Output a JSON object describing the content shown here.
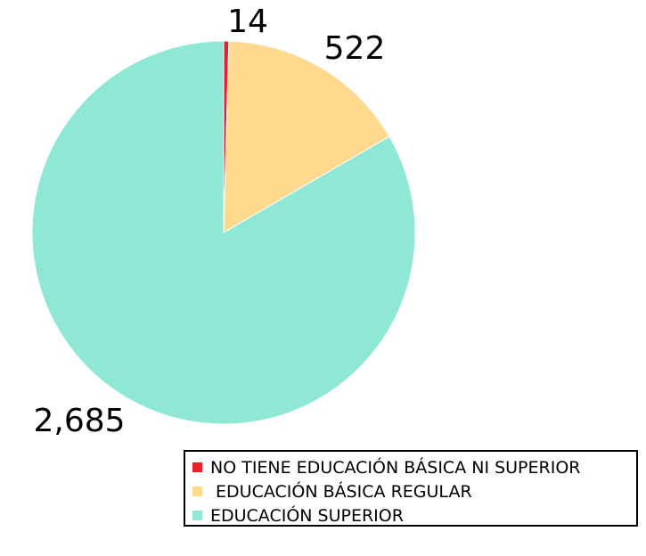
{
  "chart_data": {
    "type": "pie",
    "categories": [
      "NO TIENE EDUCACIÓN BÁSICA NI SUPERIOR",
      " EDUCACIÓN BÁSICA REGULAR",
      "EDUCACIÓN SUPERIOR"
    ],
    "values": [
      14,
      522,
      2685
    ],
    "data_labels": [
      "14",
      "522",
      "2,685"
    ],
    "colors": [
      "#e8212d",
      "#fed98e",
      "#8fe8d6"
    ],
    "start_angle": "top",
    "direction": "clockwise",
    "legend_position": "bottom-right"
  }
}
